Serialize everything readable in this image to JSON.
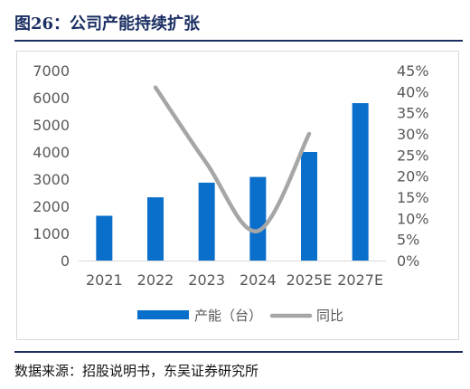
{
  "figure": {
    "title": "图26：公司产能持续扩张",
    "source": "数据来源：招股说明书，东吴证券研究所"
  },
  "colors": {
    "title_text": "#1b2f63",
    "bar": "#0a6fcb",
    "line": "#a6a6a6",
    "axis_text": "#595959",
    "gridline": "#d9d9d9"
  },
  "chart_data": {
    "type": "bar",
    "title": "",
    "categories": [
      "2021",
      "2022",
      "2023",
      "2024",
      "2025E",
      "2027E"
    ],
    "series": [
      {
        "name": "产能（台）",
        "type": "bar",
        "axis": "left",
        "values": [
          1650,
          2330,
          2870,
          3080,
          4000,
          5800
        ]
      },
      {
        "name": "同比",
        "type": "line",
        "axis": "right",
        "values": [
          null,
          0.41,
          0.23,
          0.07,
          0.3,
          null
        ]
      }
    ],
    "y_left": {
      "min": 0,
      "max": 7000,
      "ticks": [
        0,
        1000,
        2000,
        3000,
        4000,
        5000,
        6000,
        7000
      ]
    },
    "y_right": {
      "min": 0,
      "max": 0.45,
      "ticks": [
        "0%",
        "5%",
        "10%",
        "15%",
        "20%",
        "25%",
        "30%",
        "35%",
        "40%",
        "45%"
      ]
    },
    "grid": false,
    "legend_position": "bottom"
  }
}
